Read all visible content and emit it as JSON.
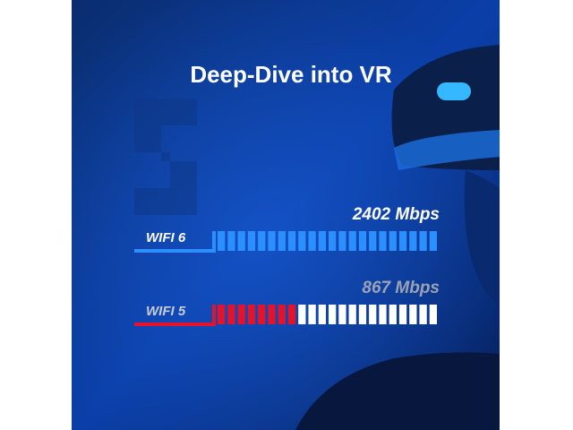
{
  "chart_data": {
    "type": "bar",
    "title": "Deep-Dive into VR",
    "categories": [
      "WIFI 6",
      "WIFI 5"
    ],
    "values": [
      2402,
      867
    ],
    "value_labels": [
      "2402 Mbps",
      "867 Mbps"
    ],
    "colors": [
      "#2b8fff",
      "#e3132c"
    ]
  }
}
